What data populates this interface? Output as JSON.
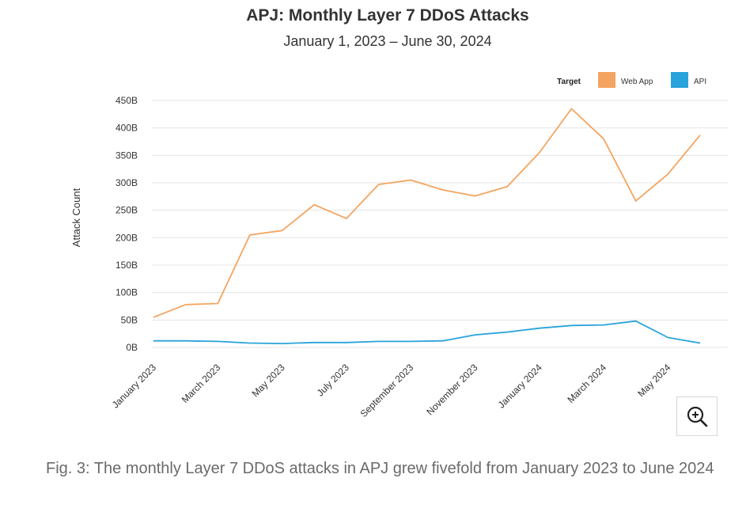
{
  "chart_data": {
    "type": "line",
    "title": "APJ: Monthly Layer 7 DDoS Attacks",
    "subtitle": "January 1, 2023 – June 30, 2024",
    "ylabel": "Attack Count",
    "xlabel": "",
    "ylim": [
      0,
      450
    ],
    "yticks": [
      "0B",
      "50B",
      "100B",
      "150B",
      "200B",
      "250B",
      "300B",
      "350B",
      "400B",
      "450B"
    ],
    "ytick_values": [
      0,
      50,
      100,
      150,
      200,
      250,
      300,
      350,
      400,
      450
    ],
    "x": [
      "2023-01",
      "2023-02",
      "2023-03",
      "2023-04",
      "2023-05",
      "2023-06",
      "2023-07",
      "2023-08",
      "2023-09",
      "2023-10",
      "2023-11",
      "2023-12",
      "2024-01",
      "2024-02",
      "2024-03",
      "2024-04",
      "2024-05",
      "2024-06"
    ],
    "xtick_labels": [
      "January 2023",
      "March 2023",
      "May 2023",
      "July 2023",
      "September 2023",
      "November 2023",
      "January 2024",
      "March 2024",
      "May 2024"
    ],
    "xtick_indices": [
      0,
      2,
      4,
      6,
      8,
      10,
      12,
      14,
      16
    ],
    "legend": {
      "title": "Target",
      "placement": "top-right"
    },
    "grid": true,
    "series": [
      {
        "name": "Web App",
        "color": "#f4a460",
        "values": [
          55,
          78,
          80,
          205,
          213,
          260,
          235,
          297,
          305,
          287,
          276,
          293,
          355,
          435,
          380,
          267,
          316,
          387
        ]
      },
      {
        "name": "API",
        "color": "#29a3db",
        "values": [
          12,
          12,
          11,
          8,
          7,
          9,
          9,
          11,
          11,
          12,
          23,
          28,
          35,
          40,
          41,
          48,
          18,
          8
        ]
      }
    ]
  },
  "zoom": {
    "icon": "zoom-in-icon"
  },
  "caption": "Fig. 3: The monthly Layer 7 DDoS attacks in APJ grew fivefold from January 2023 to June 2024"
}
